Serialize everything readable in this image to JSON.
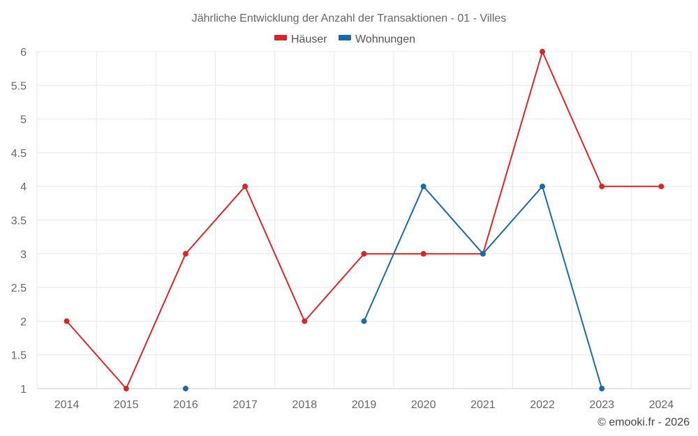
{
  "chart_data": {
    "type": "line",
    "title": "Jährliche Entwicklung der Anzahl der Transaktionen - 01 - Villes",
    "categories": [
      "2014",
      "2015",
      "2016",
      "2017",
      "2018",
      "2019",
      "2020",
      "2021",
      "2022",
      "2023",
      "2024"
    ],
    "ylim": [
      1,
      6
    ],
    "yticks": [
      1,
      1.5,
      2,
      2.5,
      3,
      3.5,
      4,
      4.5,
      5,
      5.5,
      6
    ],
    "grid": true,
    "legend_position": "top-center",
    "series": [
      {
        "name": "Häuser",
        "color": "#d62728",
        "values": [
          2,
          1,
          3,
          4,
          2,
          3,
          3,
          3,
          6,
          4,
          4
        ]
      },
      {
        "name": "Wohnungen",
        "color": "#1a6aa5",
        "values": [
          null,
          null,
          1,
          null,
          null,
          2,
          4,
          3,
          4,
          1,
          null
        ]
      }
    ]
  },
  "credit": "© emooki.fr - 2026"
}
